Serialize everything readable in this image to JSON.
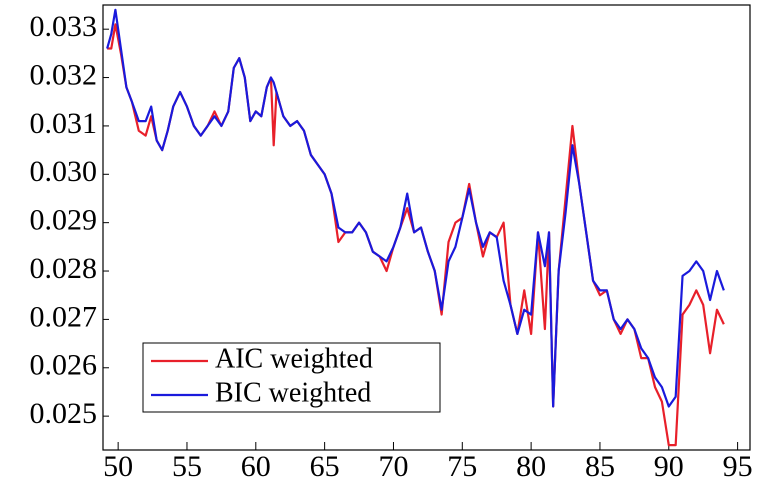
{
  "chart_data": {
    "type": "line",
    "x": [
      49.2,
      49.5,
      49.8,
      50.2,
      50.6,
      51,
      51.5,
      52,
      52.4,
      52.8,
      53.2,
      53.6,
      54,
      54.5,
      55,
      55.5,
      56,
      56.5,
      57,
      57.5,
      58,
      58.4,
      58.8,
      59.2,
      59.6,
      60,
      60.4,
      60.8,
      61.1,
      61.3,
      61.5,
      62,
      62.5,
      63,
      63.5,
      64,
      64.5,
      65,
      65.5,
      66,
      66.5,
      67,
      67.5,
      68,
      68.5,
      69,
      69.5,
      70,
      70.5,
      71,
      71.5,
      72,
      72.5,
      73,
      73.5,
      74,
      74.5,
      75,
      75.5,
      76,
      76.5,
      77,
      77.5,
      78,
      78.5,
      79,
      79.5,
      80,
      80.5,
      81,
      81.3,
      81.6,
      82,
      82.5,
      83,
      83.5,
      84,
      84.5,
      85,
      85.5,
      86,
      86.5,
      87,
      87.5,
      88,
      88.5,
      89,
      89.5,
      90,
      90.5,
      91,
      91.5,
      92,
      92.5,
      93,
      93.5,
      94
    ],
    "series": [
      {
        "name": "AIC weighted",
        "color": "#e8202a",
        "values": [
          0.0326,
          0.0326,
          0.0331,
          0.0325,
          0.0318,
          0.0315,
          0.0309,
          0.0308,
          0.0312,
          0.0307,
          0.0305,
          0.0309,
          0.0314,
          0.0317,
          0.0314,
          0.031,
          0.0308,
          0.031,
          0.0313,
          0.031,
          0.0313,
          0.0322,
          0.0324,
          0.032,
          0.0311,
          0.0313,
          0.0312,
          0.0318,
          0.032,
          0.0306,
          0.0317,
          0.0312,
          0.031,
          0.0311,
          0.0309,
          0.0304,
          0.0302,
          0.03,
          0.0296,
          0.0286,
          0.0288,
          0.0288,
          0.029,
          0.0288,
          0.0284,
          0.0283,
          0.028,
          0.0285,
          0.0289,
          0.0293,
          0.0288,
          0.0289,
          0.0284,
          0.028,
          0.0271,
          0.0286,
          0.029,
          0.0291,
          0.0298,
          0.029,
          0.0283,
          0.0288,
          0.0287,
          0.029,
          0.0273,
          0.0267,
          0.0276,
          0.0267,
          0.0288,
          0.0268,
          0.0288,
          0.0252,
          0.028,
          0.0295,
          0.031,
          0.0298,
          0.0288,
          0.0278,
          0.0275,
          0.0276,
          0.027,
          0.0267,
          0.027,
          0.0268,
          0.0262,
          0.0262,
          0.0256,
          0.0253,
          0.0244,
          0.0244,
          0.0271,
          0.0273,
          0.0276,
          0.0273,
          0.0263,
          0.0272,
          0.0269
        ]
      },
      {
        "name": "BIC weighted",
        "color": "#1a1adc",
        "values": [
          0.0326,
          0.0329,
          0.0334,
          0.0326,
          0.0318,
          0.0315,
          0.0311,
          0.0311,
          0.0314,
          0.0307,
          0.0305,
          0.0309,
          0.0314,
          0.0317,
          0.0314,
          0.031,
          0.0308,
          0.031,
          0.0312,
          0.031,
          0.0313,
          0.0322,
          0.0324,
          0.032,
          0.0311,
          0.0313,
          0.0312,
          0.0318,
          0.032,
          0.0319,
          0.0317,
          0.0312,
          0.031,
          0.0311,
          0.0309,
          0.0304,
          0.0302,
          0.03,
          0.0296,
          0.0289,
          0.0288,
          0.0288,
          0.029,
          0.0288,
          0.0284,
          0.0283,
          0.0282,
          0.0285,
          0.0289,
          0.0296,
          0.0288,
          0.0289,
          0.0284,
          0.028,
          0.0272,
          0.0282,
          0.0285,
          0.0291,
          0.0297,
          0.029,
          0.0285,
          0.0288,
          0.0287,
          0.0278,
          0.0273,
          0.0267,
          0.0272,
          0.0271,
          0.0288,
          0.0281,
          0.0288,
          0.0252,
          0.028,
          0.0292,
          0.0306,
          0.0298,
          0.0288,
          0.0278,
          0.0276,
          0.0276,
          0.027,
          0.0268,
          0.027,
          0.0268,
          0.0264,
          0.0262,
          0.0258,
          0.0256,
          0.0252,
          0.0254,
          0.0279,
          0.028,
          0.0282,
          0.028,
          0.0274,
          0.028,
          0.0276
        ]
      }
    ],
    "xlim": [
      48.9,
      95.9
    ],
    "xticks": [
      50,
      55,
      60,
      65,
      70,
      75,
      80,
      85,
      90,
      95
    ],
    "ylim": [
      0.0243,
      0.0335
    ],
    "yticks": [
      0.025,
      0.026,
      0.027,
      0.028,
      0.029,
      {
        "value": 0.03,
        "label": "0.030"
      },
      0.031,
      0.032,
      0.033
    ],
    "legend": "lower left"
  }
}
